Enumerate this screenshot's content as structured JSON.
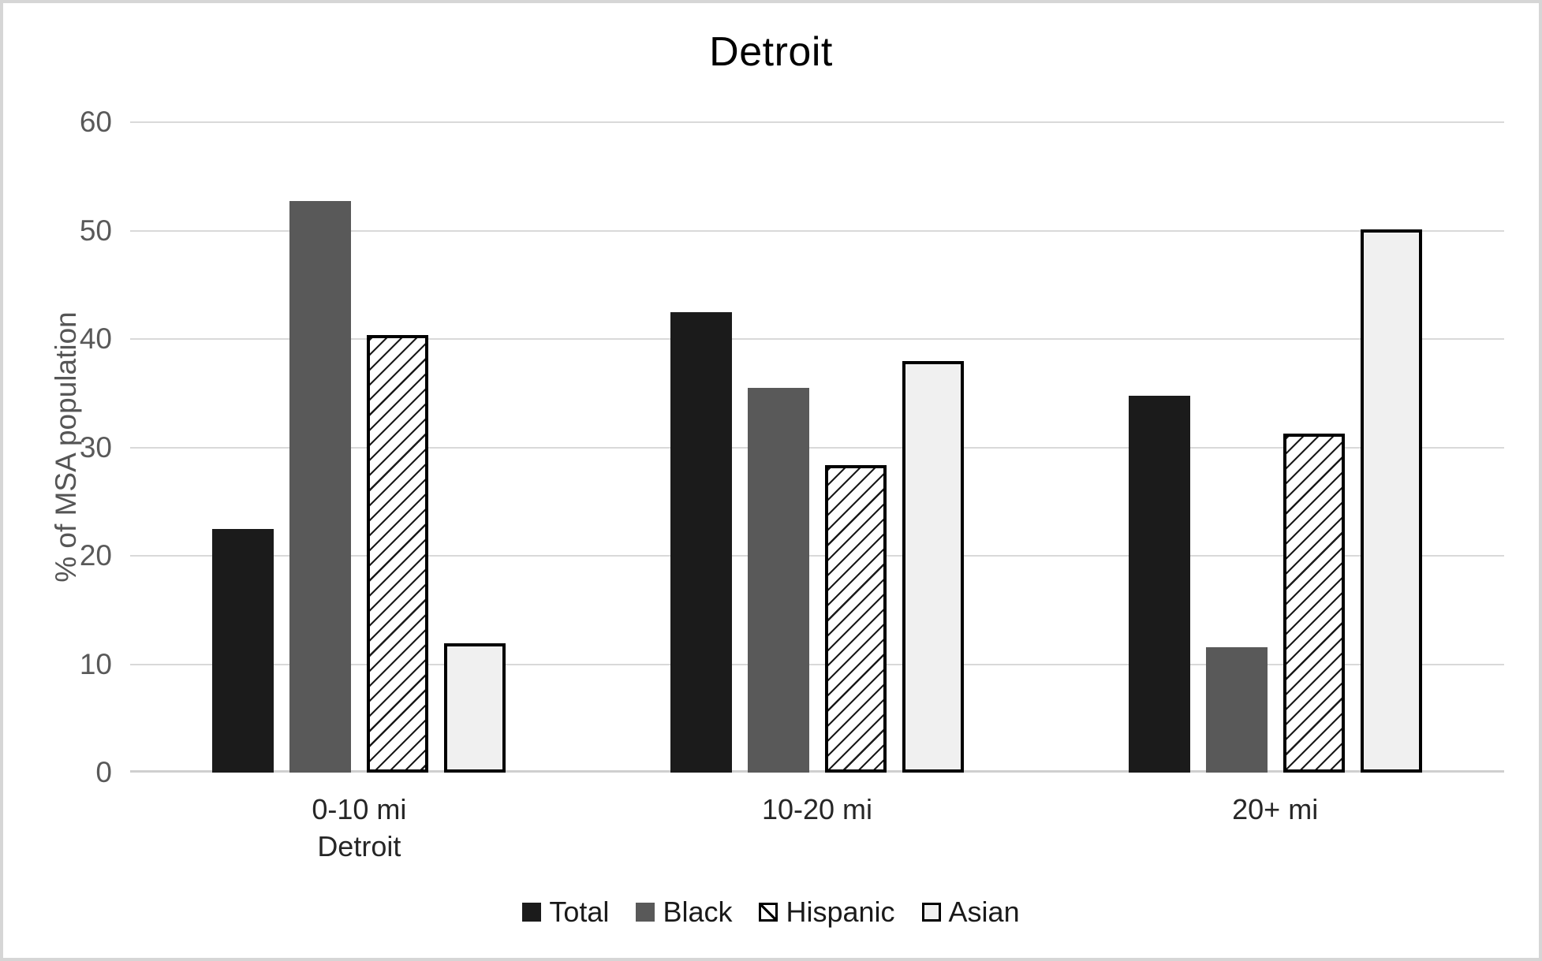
{
  "title": "Detroit",
  "y_axis": {
    "title": "% of MSA population",
    "ticks": [
      60,
      50,
      40,
      30,
      20,
      10,
      0
    ]
  },
  "x_axis": {
    "categories": [
      {
        "lines": [
          "0-10 mi",
          "Detroit"
        ]
      },
      {
        "lines": [
          "10-20 mi"
        ]
      },
      {
        "lines": [
          "20+ mi"
        ]
      }
    ]
  },
  "legend": {
    "items": [
      {
        "label": "Total",
        "swatch": "solid-dark"
      },
      {
        "label": "Black",
        "swatch": "solid-gray"
      },
      {
        "label": "Hispanic",
        "swatch": "hatched"
      },
      {
        "label": "Asian",
        "swatch": "light"
      }
    ]
  },
  "colors": {
    "total_bar": "#1b1b1b",
    "black_bar": "#595959",
    "hispanic_fill": "#ffffff",
    "hispanic_hatch": "#1a1a1a",
    "asian_fill": "#f0f0f0",
    "bar_border": "#000000",
    "gridline": "#d9d9d9",
    "baseline": "#cfcfcf",
    "y_tick_text": "#595959",
    "x_label_text": "#262626",
    "title_text": "#000000",
    "canvas_border": "#d6d6d6"
  },
  "chart_data": {
    "type": "bar",
    "title": "Detroit",
    "categories": [
      "0-10 mi Detroit",
      "10-20 mi",
      "20+ mi"
    ],
    "series": [
      {
        "name": "Total",
        "style": "total",
        "values": [
          22.5,
          42.5,
          34.8
        ]
      },
      {
        "name": "Black",
        "style": "black",
        "values": [
          52.7,
          35.5,
          11.6
        ]
      },
      {
        "name": "Hispanic",
        "style": "hispanic",
        "values": [
          40.4,
          28.4,
          31.3
        ]
      },
      {
        "name": "Asian",
        "style": "asian",
        "values": [
          11.9,
          38.0,
          50.1
        ]
      }
    ],
    "ylabel": "% of MSA population",
    "ylim": [
      0,
      60
    ],
    "ytick_step": 10,
    "grid": true,
    "legend_position": "bottom"
  }
}
